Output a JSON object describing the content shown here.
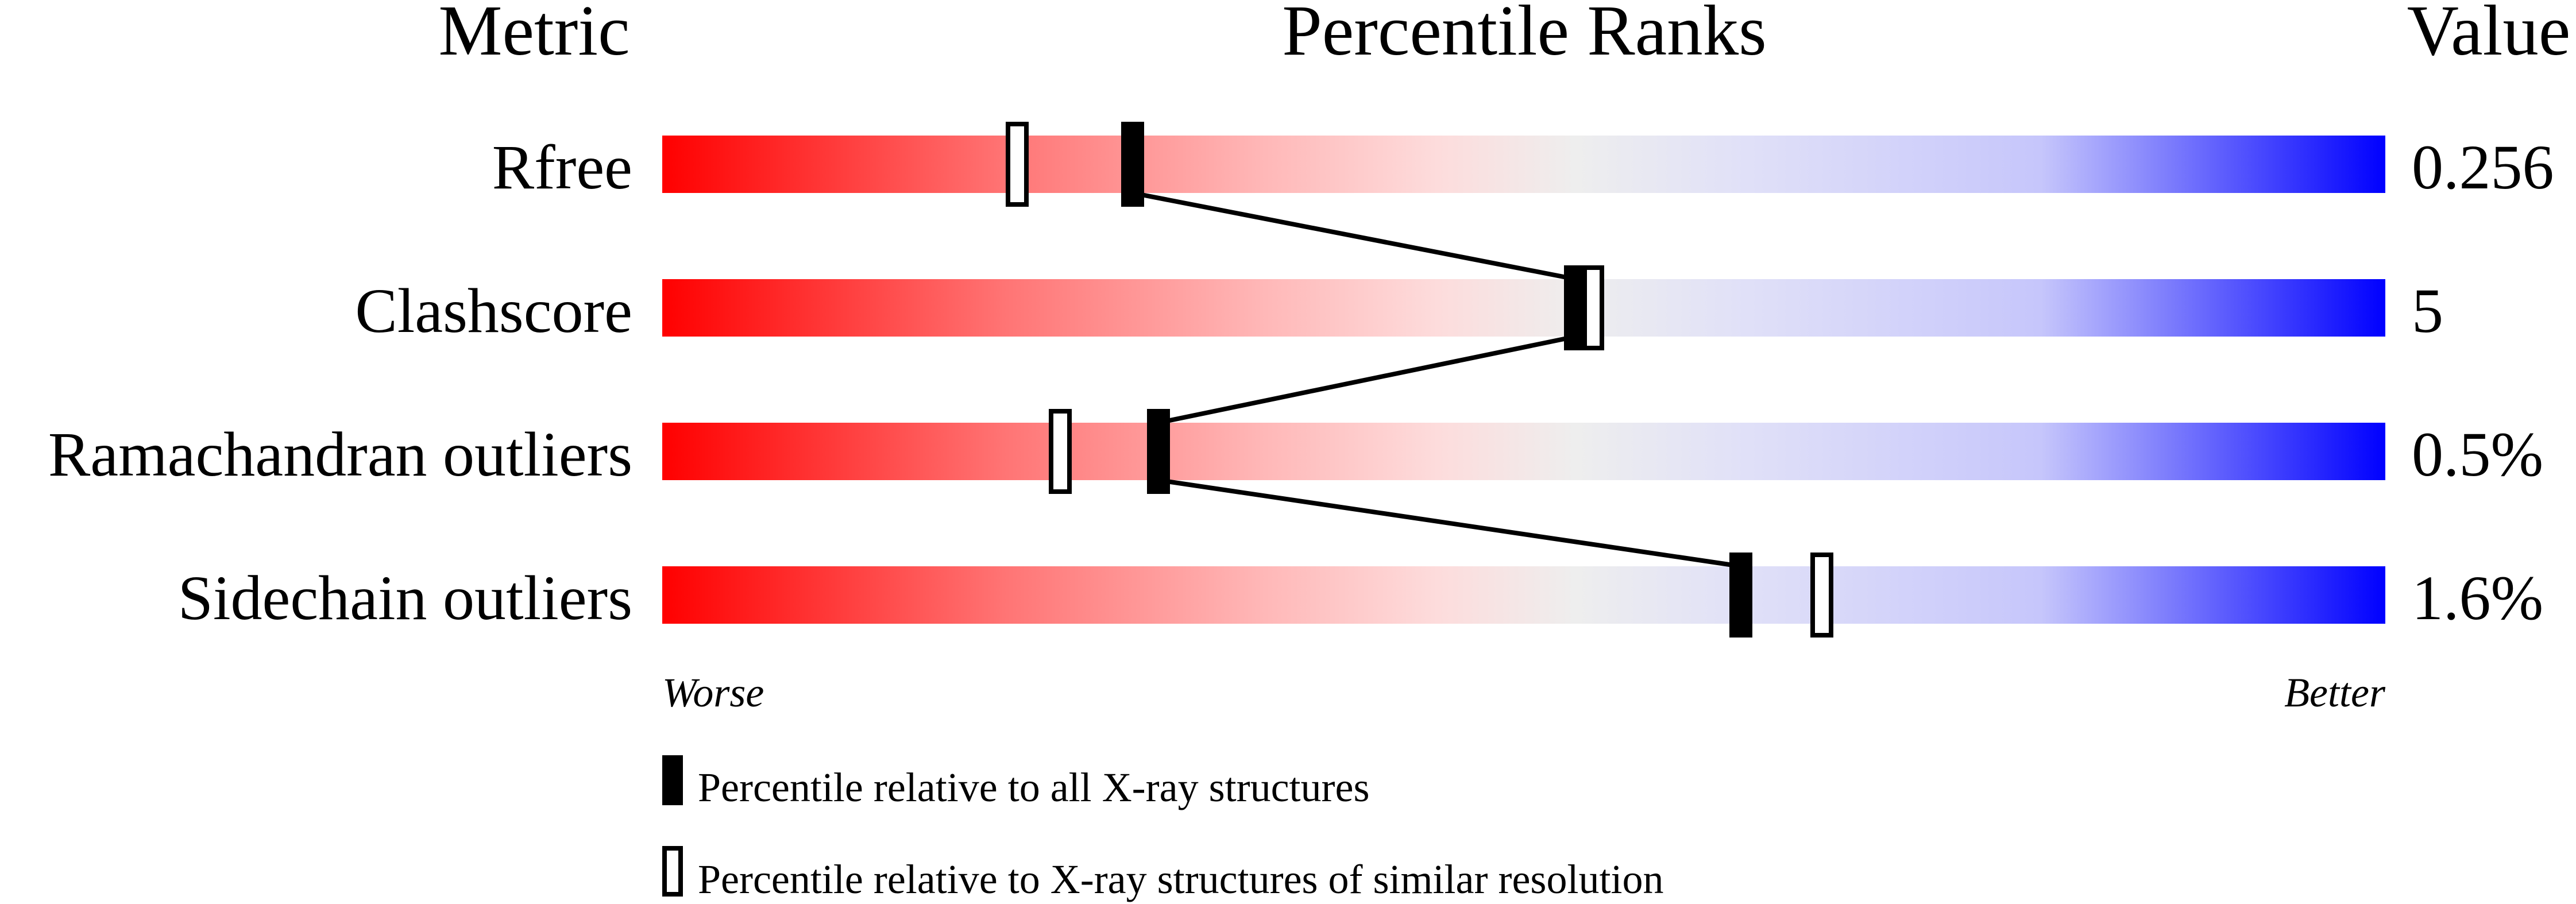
{
  "chart_data": {
    "type": "percentile-bars",
    "headers": {
      "metric": "Metric",
      "ranks": "Percentile Ranks",
      "value": "Value"
    },
    "xlim": [
      0,
      100
    ],
    "axis_labels": {
      "left": "Worse",
      "right": "Better"
    },
    "rows": [
      {
        "metric": "Rfree",
        "value": "0.256",
        "percentile_all": 27.3,
        "percentile_similar": 20.6
      },
      {
        "metric": "Clashscore",
        "value": "5",
        "percentile_all": 53.0,
        "percentile_similar": 54.0
      },
      {
        "metric": "Ramachandran outliers",
        "value": "0.5%",
        "percentile_all": 28.8,
        "percentile_similar": 23.1
      },
      {
        "metric": "Sidechain outliers",
        "value": "1.6%",
        "percentile_all": 62.6,
        "percentile_similar": 67.3
      }
    ],
    "legend": [
      {
        "marker": "filled",
        "label": "Percentile relative to all X-ray structures"
      },
      {
        "marker": "open",
        "label": "Percentile relative to X-ray structures of similar resolution"
      }
    ],
    "colors": {
      "worse": "#ff0000",
      "middle": "#eeeeee",
      "better": "#0000ff",
      "marker": "#000000"
    }
  }
}
